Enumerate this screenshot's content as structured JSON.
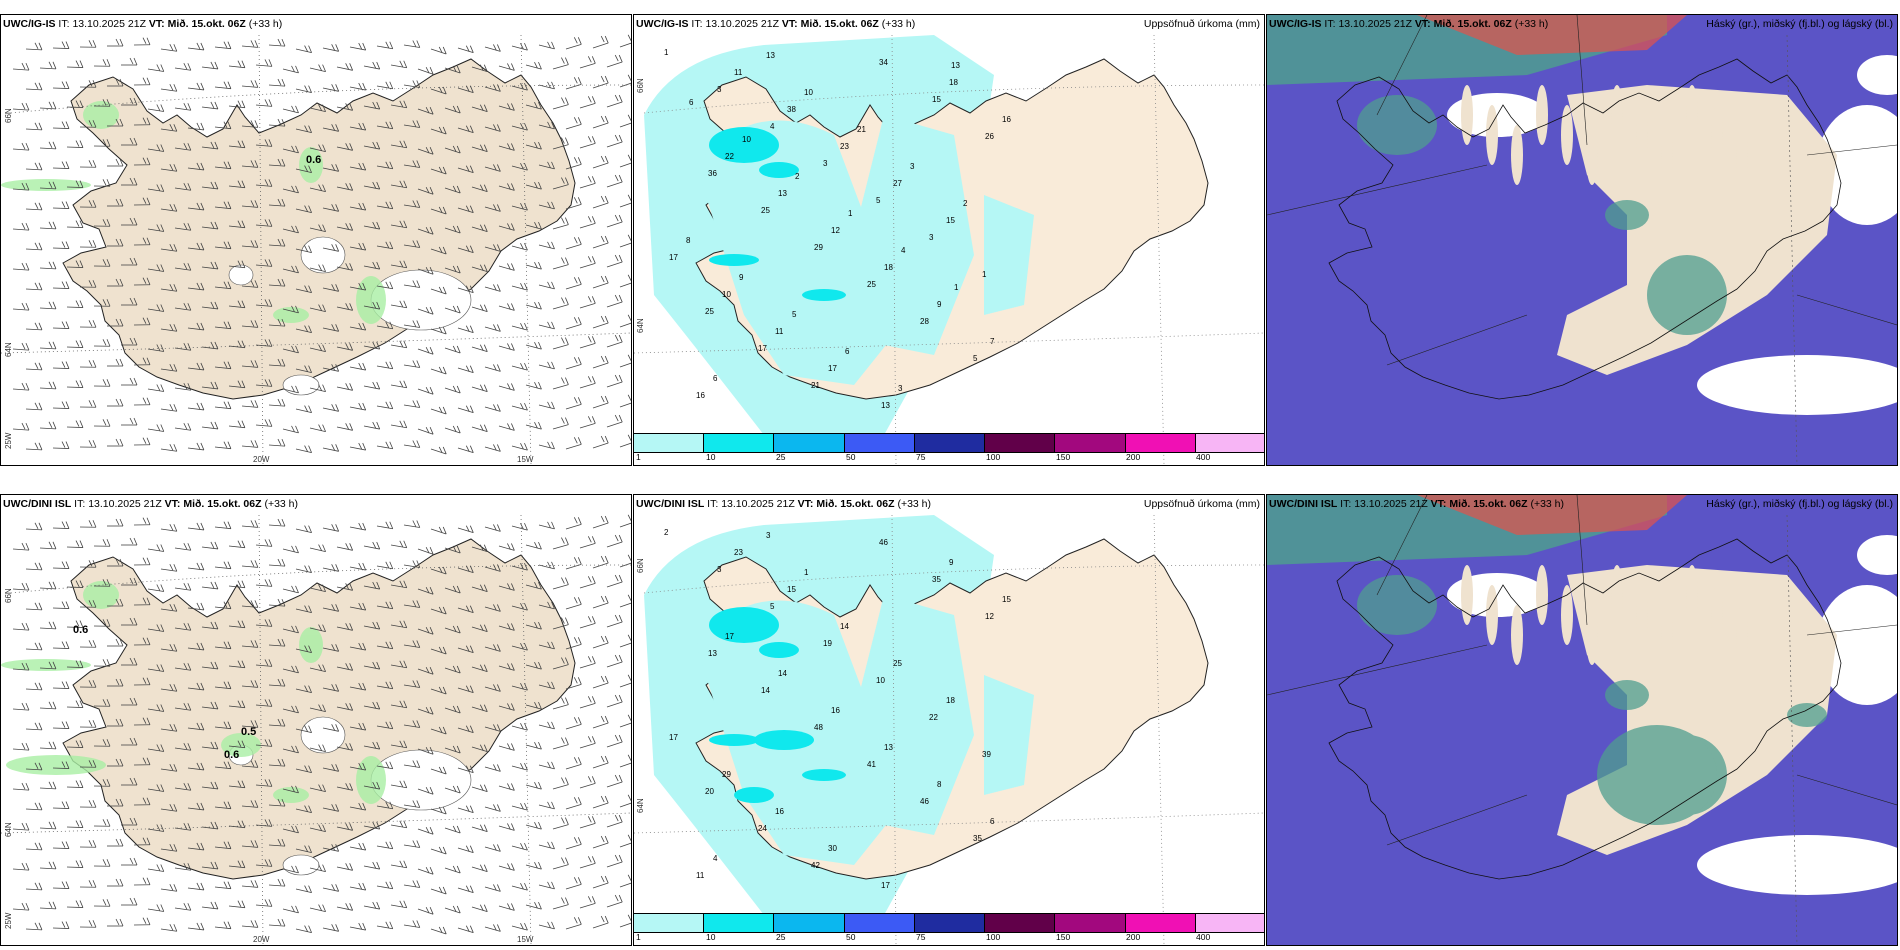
{
  "panels": [
    {
      "model": "UWC/IG-IS",
      "it_label": "IT:",
      "it": "13.10.2025 21Z",
      "vt_label": "VT:",
      "vt": "Mið. 15.okt. 06Z",
      "lead": "(+33 h)",
      "field": "",
      "type": "wind"
    },
    {
      "model": "UWC/IG-IS",
      "it_label": "IT:",
      "it": "13.10.2025 21Z",
      "vt_label": "VT:",
      "vt": "Mið. 15.okt. 06Z",
      "lead": "(+33 h)",
      "field": "Uppsöfnuð úrkoma (mm)",
      "type": "precip"
    },
    {
      "model": "UWC/IG-IS",
      "it_label": "IT:",
      "it": "13.10.2025 21Z",
      "vt_label": "VT:",
      "vt": "Mið. 15.okt. 06Z",
      "lead": "(+33 h)",
      "field": "Háský (gr.), miðský (fj.bl.) og lágský (bl.)",
      "type": "cloud"
    },
    {
      "model": "UWC/DINI ISL",
      "it_label": "IT:",
      "it": "13.10.2025 21Z",
      "vt_label": "VT:",
      "vt": "Mið. 15.okt. 06Z",
      "lead": "(+33 h)",
      "field": "",
      "type": "wind"
    },
    {
      "model": "UWC/DINI ISL",
      "it_label": "IT:",
      "it": "13.10.2025 21Z",
      "vt_label": "VT:",
      "vt": "Mið. 15.okt. 06Z",
      "lead": "(+33 h)",
      "field": "Uppsöfnuð úrkoma (mm)",
      "type": "precip"
    },
    {
      "model": "UWC/DINI ISL",
      "it_label": "IT:",
      "it": "13.10.2025 21Z",
      "vt_label": "VT:",
      "vt": "Mið. 15.okt. 06Z",
      "lead": "(+33 h)",
      "field": "Háský (gr.), miðský (fj.bl.) og lágský (bl.)",
      "type": "cloud"
    }
  ],
  "grid_labels": {
    "lon_20": "20W",
    "lon_15": "15W",
    "lat_66": "66N",
    "lat_64": "64N",
    "lon_25": "25W"
  },
  "wind_values": {
    "top": [
      "0.6"
    ],
    "bottom": [
      "0.6",
      "0.5",
      "0.6"
    ]
  },
  "precip_values": {
    "top": [
      "1",
      "3",
      "4",
      "3",
      "5",
      "3",
      "1",
      "25",
      "17",
      "21",
      "34",
      "15",
      "26",
      "36",
      "25",
      "29",
      "25",
      "28",
      "5",
      "16",
      "11",
      "38",
      "23",
      "27",
      "15",
      "17",
      "10",
      "11",
      "17",
      "13",
      "18",
      "16",
      "22",
      "13",
      "12",
      "18",
      "9",
      "7",
      "6",
      "13",
      "10",
      "21",
      "3",
      "2",
      "8",
      "9",
      "5",
      "6",
      "3",
      "13",
      "6",
      "10",
      "2",
      "1",
      "4",
      "1"
    ],
    "bottom": [
      "2",
      "3",
      "5",
      "19",
      "10",
      "22",
      "39",
      "20",
      "24",
      "42",
      "46",
      "35",
      "12",
      "13",
      "14",
      "48",
      "41",
      "46",
      "35",
      "11",
      "23",
      "15",
      "14",
      "25",
      "18",
      "17",
      "29",
      "16",
      "30",
      "17",
      "9",
      "15",
      "17",
      "14",
      "16",
      "13",
      "8",
      "6",
      "4",
      "3",
      "1"
    ]
  },
  "legend": {
    "ticks": [
      "1",
      "10",
      "25",
      "50",
      "75",
      "100",
      "150",
      "200",
      "400"
    ],
    "colors": [
      "#b5f7f5",
      "#10e8ed",
      "#0bb7ef",
      "#3c5af5",
      "#1f2ca0",
      "#610049",
      "#a2087e",
      "#f010b4",
      "#f7b5f5"
    ]
  },
  "colors": {
    "land": "#efe2cf",
    "land_light": "#f9ebd9",
    "precip_light": "#b5f7f5",
    "precip_mid": "#10e8ed",
    "low_cloud": "#5b54c6",
    "mid_cloud": "#4f9e8f",
    "high_cloud": "#e2534a"
  }
}
